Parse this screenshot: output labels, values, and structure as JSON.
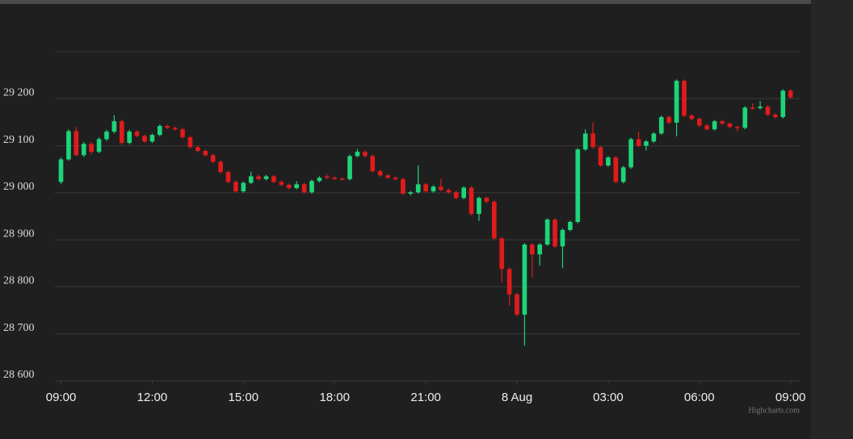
{
  "chart_data": {
    "type": "candlestick",
    "x": [
      0,
      0.25,
      0.5,
      0.75,
      1,
      1.25,
      1.5,
      1.75,
      2,
      2.25,
      2.5,
      2.75,
      3,
      3.25,
      3.5,
      3.75,
      4,
      4.25,
      4.5,
      4.75,
      5,
      5.25,
      5.5,
      5.75,
      6,
      6.25,
      6.5,
      6.75,
      7,
      7.25,
      7.5,
      7.75,
      8,
      8.25,
      8.5,
      8.75,
      9,
      9.25,
      9.5,
      9.75,
      10,
      10.25,
      10.5,
      10.75,
      11,
      11.25,
      11.5,
      11.75,
      12,
      12.25,
      12.5,
      12.75,
      13,
      13.25,
      13.5,
      13.75,
      14,
      14.25,
      14.5,
      14.75,
      15,
      15.25,
      15.5,
      15.75,
      16,
      16.25,
      16.5,
      16.75,
      17,
      17.25,
      17.5,
      17.75,
      18,
      18.25,
      18.5,
      18.75,
      19,
      19.25,
      19.5,
      19.75,
      20,
      20.25,
      20.5,
      20.75,
      21,
      21.25,
      21.5,
      21.75,
      22,
      22.25,
      22.5,
      22.75,
      23,
      23.25,
      23.5,
      23.75,
      24
    ],
    "candles": [
      [
        29023,
        29075,
        29018,
        29071
      ],
      [
        29071,
        29135,
        29068,
        29131
      ],
      [
        29131,
        29140,
        29078,
        29080
      ],
      [
        29080,
        29108,
        29076,
        29104
      ],
      [
        29104,
        29108,
        29082,
        29087
      ],
      [
        29087,
        29118,
        29084,
        29114
      ],
      [
        29114,
        29134,
        29110,
        29130
      ],
      [
        29130,
        29165,
        29126,
        29152
      ],
      [
        29152,
        29155,
        29102,
        29106
      ],
      [
        29106,
        29134,
        29103,
        29130
      ],
      [
        29130,
        29133,
        29118,
        29121
      ],
      [
        29121,
        29124,
        29106,
        29109
      ],
      [
        29109,
        29126,
        29106,
        29123
      ],
      [
        29123,
        29145,
        29120,
        29142
      ],
      [
        29142,
        29145,
        29135,
        29138
      ],
      [
        29138,
        29141,
        29132,
        29135
      ],
      [
        29135,
        29138,
        29115,
        29118
      ],
      [
        29118,
        29121,
        29094,
        29097
      ],
      [
        29097,
        29100,
        29086,
        29089
      ],
      [
        29089,
        29092,
        29077,
        29080
      ],
      [
        29080,
        29083,
        29063,
        29066
      ],
      [
        29066,
        29069,
        29041,
        29044
      ],
      [
        29044,
        29047,
        29020,
        29023
      ],
      [
        29023,
        29026,
        29000,
        29003
      ],
      [
        29003,
        29024,
        29000,
        29021
      ],
      [
        29021,
        29045,
        29018,
        29035
      ],
      [
        29035,
        29038,
        29026,
        29029
      ],
      [
        29029,
        29038,
        29026,
        29035
      ],
      [
        29035,
        29038,
        29020,
        29023
      ],
      [
        29023,
        29026,
        29014,
        29017
      ],
      [
        29017,
        29020,
        29007,
        29010
      ],
      [
        29010,
        29025,
        29007,
        29018
      ],
      [
        29018,
        29021,
        28998,
        29001
      ],
      [
        29001,
        29028,
        28998,
        29025
      ],
      [
        29025,
        29035,
        29022,
        29032
      ],
      [
        29035,
        29040,
        29029,
        29032
      ],
      [
        29032,
        29035,
        29027,
        29030
      ],
      [
        29030,
        29033,
        29026,
        29029
      ],
      [
        29029,
        29081,
        29026,
        29078
      ],
      [
        29078,
        29093,
        29075,
        29087
      ],
      [
        29087,
        29090,
        29075,
        29078
      ],
      [
        29078,
        29081,
        29043,
        29046
      ],
      [
        29046,
        29049,
        29034,
        29037
      ],
      [
        29037,
        29040,
        29029,
        29032
      ],
      [
        29032,
        29035,
        29026,
        29029
      ],
      [
        29029,
        29032,
        28995,
        28998
      ],
      [
        28998,
        29004,
        28994,
        29001
      ],
      [
        29001,
        29058,
        28998,
        29018
      ],
      [
        29018,
        29021,
        29000,
        29003
      ],
      [
        29003,
        29016,
        29000,
        29013
      ],
      [
        29013,
        29030,
        29003,
        29006
      ],
      [
        29006,
        29009,
        28998,
        29001
      ],
      [
        29001,
        29004,
        28986,
        28989
      ],
      [
        28989,
        29014,
        28986,
        29011
      ],
      [
        29011,
        29014,
        28952,
        28955
      ],
      [
        28955,
        28992,
        28940,
        28989
      ],
      [
        28989,
        28992,
        28978,
        28981
      ],
      [
        28981,
        28984,
        28900,
        28903
      ],
      [
        28903,
        28906,
        28810,
        28838
      ],
      [
        28838,
        28841,
        28760,
        28784
      ],
      [
        28784,
        28787,
        28738,
        28741
      ],
      [
        28741,
        28893,
        28675,
        28890
      ],
      [
        28890,
        28893,
        28820,
        28869
      ],
      [
        28869,
        28893,
        28845,
        28890
      ],
      [
        28890,
        28946,
        28887,
        28943
      ],
      [
        28943,
        28946,
        28883,
        28886
      ],
      [
        28886,
        28924,
        28840,
        28921
      ],
      [
        28921,
        28941,
        28918,
        28938
      ],
      [
        28938,
        29095,
        28935,
        29092
      ],
      [
        29092,
        29135,
        29089,
        29126
      ],
      [
        29126,
        29150,
        29094,
        29097
      ],
      [
        29097,
        29100,
        29055,
        29058
      ],
      [
        29058,
        29078,
        29055,
        29075
      ],
      [
        29075,
        29078,
        29020,
        29023
      ],
      [
        29023,
        29057,
        29020,
        29054
      ],
      [
        29054,
        29117,
        29051,
        29114
      ],
      [
        29114,
        29130,
        29097,
        29100
      ],
      [
        29100,
        29112,
        29090,
        29109
      ],
      [
        29109,
        29129,
        29106,
        29126
      ],
      [
        29126,
        29164,
        29123,
        29161
      ],
      [
        29161,
        29164,
        29146,
        29149
      ],
      [
        29149,
        29241,
        29120,
        29238
      ],
      [
        29238,
        29241,
        29161,
        29164
      ],
      [
        29164,
        29167,
        29154,
        29157
      ],
      [
        29157,
        29160,
        29140,
        29143
      ],
      [
        29143,
        29146,
        29132,
        29135
      ],
      [
        29135,
        29155,
        29132,
        29152
      ],
      [
        29152,
        29155,
        29144,
        29147
      ],
      [
        29147,
        29150,
        29137,
        29140
      ],
      [
        29140,
        29143,
        29130,
        29138
      ],
      [
        29138,
        29184,
        29135,
        29181
      ],
      [
        29181,
        29190,
        29177,
        29180
      ],
      [
        29180,
        29195,
        29177,
        29183
      ],
      [
        29183,
        29186,
        29163,
        29166
      ],
      [
        29166,
        29169,
        29158,
        29161
      ],
      [
        29161,
        29220,
        29158,
        29217
      ],
      [
        29217,
        29220,
        29200,
        29203
      ]
    ],
    "up_color": "#1ed47a",
    "down_color": "#e01b1b",
    "xlim": [
      -0.2,
      24.3
    ],
    "xticks": [
      {
        "value": 0,
        "label": "09:00"
      },
      {
        "value": 3,
        "label": "12:00"
      },
      {
        "value": 6,
        "label": "15:00"
      },
      {
        "value": 9,
        "label": "18:00"
      },
      {
        "value": 12,
        "label": "21:00"
      },
      {
        "value": 15,
        "label": "8 Aug"
      },
      {
        "value": 18,
        "label": "03:00"
      },
      {
        "value": 21,
        "label": "06:00"
      },
      {
        "value": 24,
        "label": "09:00"
      }
    ],
    "ylim": [
      28600,
      29300
    ],
    "yticks": [
      {
        "value": 28600,
        "label": "28 600"
      },
      {
        "value": 28700,
        "label": "28 700"
      },
      {
        "value": 28800,
        "label": "28 800"
      },
      {
        "value": 28900,
        "label": "28 900"
      },
      {
        "value": 29000,
        "label": "29 000"
      },
      {
        "value": 29100,
        "label": "29 100"
      },
      {
        "value": 29200,
        "label": "29 200"
      }
    ],
    "grid": true,
    "credits": "Highcharts.com"
  }
}
